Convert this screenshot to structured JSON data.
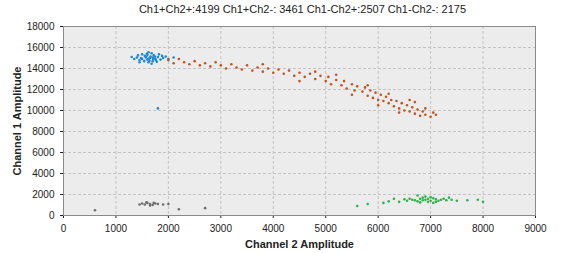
{
  "chart_data": {
    "type": "scatter",
    "title": "Ch1+Ch2+:4199 Ch1+Ch2-: 3461 Ch1-Ch2+:2507 Ch1-Ch2-: 2175",
    "x_label": "Channel 2 Amplitude",
    "y_label": "Channel 1 Amplitude",
    "xlim": [
      0,
      9000
    ],
    "xticks": [
      0,
      1000,
      2000,
      3000,
      4000,
      5000,
      6000,
      7000,
      8000,
      9000
    ],
    "ylim": [
      0,
      18000
    ],
    "yticks": [
      0,
      2000,
      4000,
      6000,
      8000,
      10000,
      12000,
      14000,
      16000,
      18000
    ],
    "grid": true,
    "series": [
      {
        "color": "#1e88d6",
        "x": [
          1650,
          1500,
          1800,
          1600,
          1700,
          1550,
          1750,
          1400,
          1900,
          1620,
          1680,
          1450,
          1850,
          1580,
          1720,
          1350,
          1950,
          1600,
          1700,
          1500,
          1780,
          1620,
          1420,
          2000,
          1680,
          1540,
          1820,
          1660,
          1480,
          1760,
          2100,
          1300,
          1630,
          1570,
          1710,
          1880,
          1450,
          1590,
          1740,
          1640,
          1800
        ],
        "y": [
          15000,
          14900,
          15100,
          15300,
          14700,
          15200,
          14950,
          15050,
          15000,
          14600,
          15450,
          14800,
          14850,
          15150,
          15250,
          14900,
          15150,
          14850,
          15050,
          15350,
          14650,
          15550,
          15250,
          14900,
          14450,
          14700,
          15350,
          15150,
          15000,
          14800,
          15050,
          15100,
          14950,
          15050,
          14900,
          15200,
          14600,
          15400,
          15150,
          14750,
          10200
        ]
      },
      {
        "color": "#c1561f",
        "x": [
          2000,
          2100,
          2200,
          2300,
          2400,
          2500,
          2600,
          2700,
          2800,
          2900,
          3000,
          3100,
          3200,
          3300,
          3400,
          3500,
          3600,
          3700,
          3800,
          3900,
          4000,
          4100,
          4200,
          4300,
          4400,
          4500,
          4600,
          4700,
          4800,
          4900,
          5000,
          5050,
          5100,
          5200,
          5300,
          5350,
          5400,
          5500,
          5550,
          5600,
          5700,
          5750,
          5800,
          5850,
          5900,
          5950,
          6000,
          6050,
          6100,
          6150,
          6200,
          6250,
          6300,
          6350,
          6400,
          6450,
          6500,
          6550,
          6600,
          6650,
          6700,
          6750,
          6800,
          6850,
          6900,
          7000,
          7050,
          6200,
          5800,
          6600,
          6400,
          6000,
          5500,
          4500,
          3800,
          4800,
          5200,
          6900,
          7100,
          6700
        ],
        "y": [
          14800,
          14500,
          14900,
          14600,
          14400,
          14700,
          14300,
          14500,
          14200,
          14600,
          14300,
          14000,
          14400,
          14100,
          13900,
          14300,
          13800,
          14100,
          13700,
          14000,
          13600,
          13900,
          13500,
          13800,
          13300,
          13600,
          13200,
          13500,
          13000,
          13300,
          12800,
          13200,
          12500,
          12900,
          12400,
          12800,
          12100,
          12500,
          11900,
          12300,
          11800,
          12200,
          11400,
          11900,
          11200,
          11700,
          11000,
          11500,
          10900,
          11300,
          10700,
          11000,
          10400,
          10900,
          10200,
          10700,
          10000,
          10500,
          9900,
          10300,
          9700,
          10100,
          9500,
          9900,
          9600,
          9400,
          9800,
          11600,
          12400,
          11000,
          9800,
          10500,
          11500,
          12800,
          14400,
          13700,
          13400,
          10200,
          9600,
          10800
        ]
      },
      {
        "color": "#2db34a",
        "x": [
          6900,
          6800,
          7000,
          7100,
          6700,
          6850,
          6950,
          7200,
          6600,
          7050,
          6750,
          7150,
          6900,
          7300,
          6650,
          6800,
          7000,
          7250,
          6550,
          7100,
          6950,
          6850,
          7400,
          6500,
          7500,
          7700,
          7900,
          6300,
          6400,
          7350,
          6750,
          7050,
          5600,
          5800,
          6100,
          6200,
          8000
        ],
        "y": [
          1500,
          1600,
          1400,
          1550,
          1450,
          1700,
          1300,
          1500,
          1600,
          1650,
          1350,
          1400,
          1800,
          1450,
          1500,
          1250,
          1750,
          1600,
          1400,
          1300,
          1600,
          1450,
          1500,
          1550,
          1400,
          1450,
          1500,
          1600,
          1300,
          1700,
          1900,
          1200,
          900,
          1100,
          1200,
          1350,
          1300
        ]
      },
      {
        "color": "#6e6e6e",
        "x": [
          1650,
          1550,
          1750,
          1600,
          1700,
          1500,
          1800,
          1450,
          1900,
          1650,
          2000,
          1580,
          1720,
          600,
          2200,
          2700
        ],
        "y": [
          1100,
          1050,
          1150,
          1200,
          1000,
          1150,
          1100,
          1050,
          1050,
          950,
          1100,
          1250,
          1200,
          500,
          600,
          700
        ]
      }
    ]
  }
}
